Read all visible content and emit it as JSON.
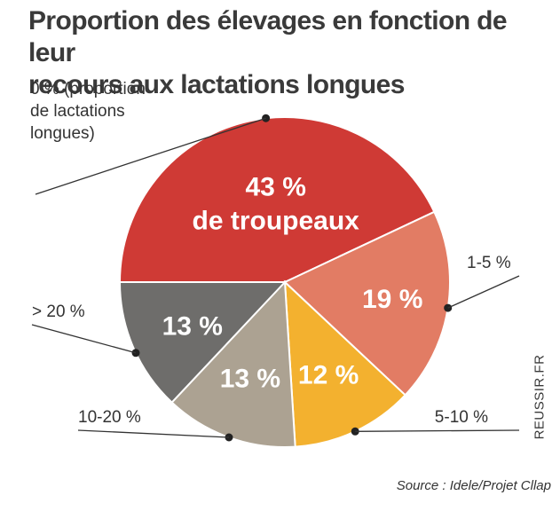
{
  "title": {
    "line1": "Proportion des élevages en fonction de leur",
    "line2": "recours aux lactations longues"
  },
  "source": "Source : Idele/Projet Cllap",
  "brand": "REUSSIR.FR",
  "chart_data": {
    "type": "pie",
    "unit": "%",
    "slices": [
      {
        "category": "0 % (proportion de lactations longues)",
        "category_lines": [
          "0 % (proportion",
          "de lactations",
          "longues)"
        ],
        "value": 43,
        "value_label_lines": [
          "43 %",
          "de troupeaux"
        ],
        "color": "#cf3a35"
      },
      {
        "category": "1-5 %",
        "category_lines": [
          "1-5 %"
        ],
        "value": 19,
        "value_label_lines": [
          "19 %"
        ],
        "color": "#e27c64"
      },
      {
        "category": "5-10 %",
        "category_lines": [
          "5-10 %"
        ],
        "value": 12,
        "value_label_lines": [
          "12 %"
        ],
        "color": "#f3b12f"
      },
      {
        "category": "10-20 %",
        "category_lines": [
          "10-20 %"
        ],
        "value": 13,
        "value_label_lines": [
          "13 %"
        ],
        "color": "#aca292"
      },
      {
        "category": "> 20 %",
        "category_lines": [
          "> 20 %"
        ],
        "value": 13,
        "value_label_lines": [
          "13 %"
        ],
        "color": "#6e6d6b"
      }
    ]
  }
}
